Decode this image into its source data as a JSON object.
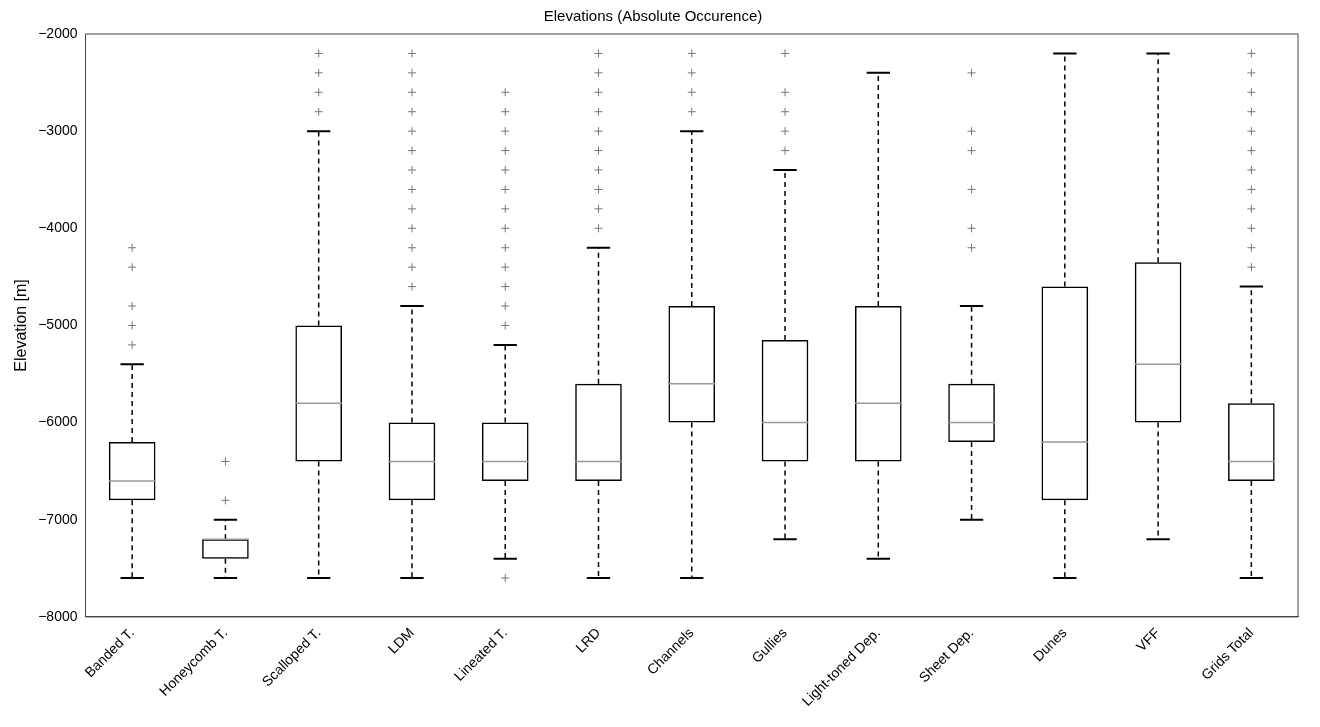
{
  "chart_data": {
    "type": "box",
    "title": "Elevations (Absolute Occurence)",
    "ylabel": "Elevation [m]",
    "categories": [
      "Banded T.",
      "Honeycomb T.",
      "Scalloped T.",
      "LDM",
      "Lineated T.",
      "LRD",
      "Channels",
      "Gullies",
      "Light-toned Dep.",
      "Sheet Dep.",
      "Dunes",
      "VFF",
      "Grids Total"
    ],
    "color": "#000000",
    "marker": "cross",
    "grid": false,
    "ylim": [
      -8000,
      -2000
    ],
    "yticks": [
      -8000,
      -7000,
      -6000,
      -5000,
      -4000,
      -3000,
      -2000
    ],
    "boxes": [
      {
        "low": -7600,
        "q1": -6800,
        "median": -6600,
        "q3": -6200,
        "high": -5400,
        "outliers": [
          -4200,
          -4400,
          -4800,
          -5000,
          -5200
        ]
      },
      {
        "low": -7600,
        "q1": -7400,
        "median": -7200,
        "q3": -7200,
        "high": -7000,
        "outliers": [
          -6400,
          -6800
        ]
      },
      {
        "low": -7600,
        "q1": -6400,
        "median": -5800,
        "q3": -5000,
        "high": -3000,
        "outliers": [
          -2200,
          -2400,
          -2600,
          -2800
        ]
      },
      {
        "low": -7600,
        "q1": -6800,
        "median": -6400,
        "q3": -6000,
        "high": -4800,
        "outliers": [
          -2200,
          -2400,
          -2600,
          -2800,
          -3000,
          -3200,
          -3400,
          -3600,
          -3800,
          -4000,
          -4200,
          -4400,
          -4600
        ]
      },
      {
        "low": -7400,
        "q1": -6600,
        "median": -6400,
        "q3": -6000,
        "high": -5200,
        "outliers": [
          -2600,
          -2800,
          -3000,
          -3200,
          -3400,
          -3600,
          -3800,
          -4000,
          -4200,
          -4400,
          -4600,
          -4800,
          -5000,
          -7600
        ]
      },
      {
        "low": -7600,
        "q1": -6600,
        "median": -6400,
        "q3": -5600,
        "high": -4200,
        "outliers": [
          -2200,
          -2400,
          -2600,
          -2800,
          -3000,
          -3200,
          -3400,
          -3600,
          -3800,
          -4000
        ]
      },
      {
        "low": -7600,
        "q1": -6000,
        "median": -5600,
        "q3": -4800,
        "high": -3000,
        "outliers": [
          -2200,
          -2400,
          -2600,
          -2800
        ]
      },
      {
        "low": -7200,
        "q1": -6400,
        "median": -6000,
        "q3": -5150,
        "high": -3400,
        "outliers": [
          -2200,
          -2600,
          -2800,
          -3000,
          -3200
        ]
      },
      {
        "low": -7400,
        "q1": -6400,
        "median": -5800,
        "q3": -4800,
        "high": -2400
      },
      {
        "low": -7000,
        "q1": -6200,
        "median": -6000,
        "q3": -5600,
        "high": -4800,
        "outliers": [
          -2400,
          -3000,
          -3200,
          -3600,
          -4000,
          -4200
        ]
      },
      {
        "low": -7600,
        "q1": -6800,
        "median": -6200,
        "q3": -4600,
        "high": -2200
      },
      {
        "low": -7200,
        "q1": -6000,
        "median": -5400,
        "q3": -4350,
        "high": -2200
      },
      {
        "low": -7600,
        "q1": -6600,
        "median": -6400,
        "q3": -5800,
        "high": -4600,
        "outliers": [
          -2200,
          -2400,
          -2600,
          -2800,
          -3000,
          -3200,
          -3400,
          -3600,
          -3800,
          -4000,
          -4200,
          -4400
        ]
      }
    ]
  }
}
